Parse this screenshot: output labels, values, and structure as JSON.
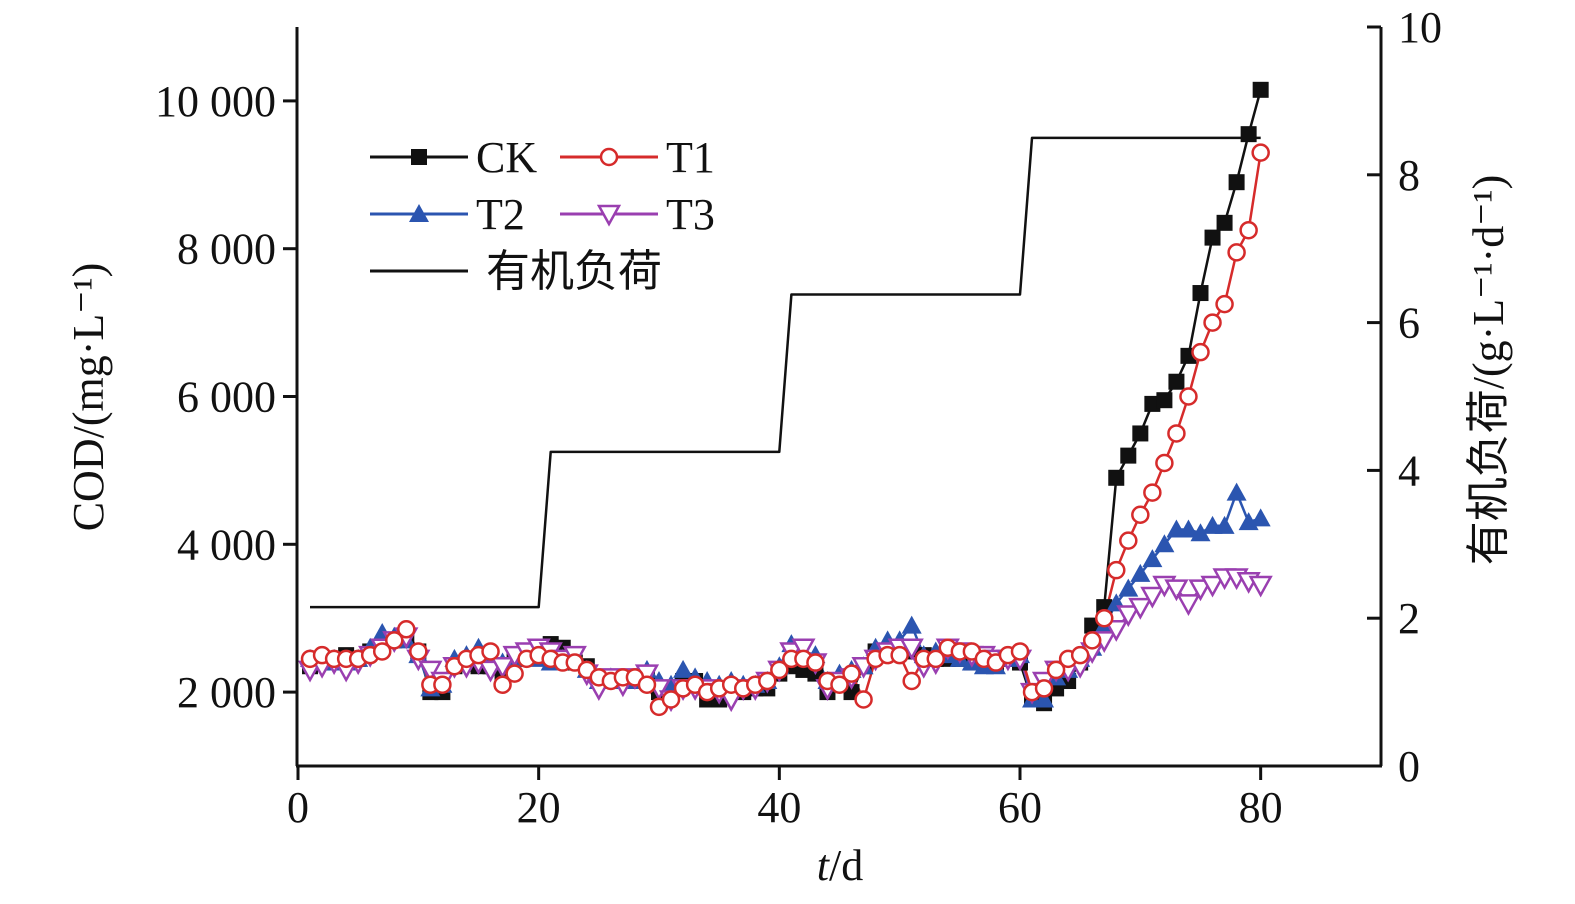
{
  "chart_data": {
    "type": "line",
    "x_axis": {
      "label_italic": "t",
      "label_rest": "/d",
      "range": [
        0,
        90
      ],
      "ticks": [
        0,
        20,
        40,
        60,
        80
      ],
      "tick_labels": [
        "0",
        "20",
        "40",
        "60",
        "80"
      ]
    },
    "y_axis_left": {
      "label": "COD/(mg·L⁻¹)",
      "range": [
        1000,
        11000
      ],
      "ticks": [
        2000,
        4000,
        6000,
        8000,
        10000
      ],
      "tick_labels": [
        "2 000",
        "4 000",
        "6 000",
        "8 000",
        "10 000"
      ]
    },
    "y_axis_right": {
      "label": "有机负荷/(g·L⁻¹·d⁻¹)",
      "range": [
        0,
        10
      ],
      "ticks": [
        0,
        2,
        4,
        6,
        8,
        10
      ],
      "tick_labels": [
        "0",
        "2",
        "4",
        "6",
        "8",
        "10"
      ]
    },
    "legend_position": "top-left",
    "series": [
      {
        "name": "CK",
        "axis": "left",
        "color": "#111111",
        "marker": "square",
        "x": [
          1,
          2,
          3,
          4,
          5,
          6,
          7,
          8,
          9,
          10,
          11,
          12,
          13,
          14,
          15,
          16,
          17,
          18,
          19,
          20,
          21,
          22,
          23,
          24,
          25,
          26,
          27,
          28,
          29,
          30,
          31,
          32,
          33,
          34,
          35,
          36,
          37,
          38,
          39,
          40,
          41,
          42,
          43,
          44,
          45,
          46,
          47,
          48,
          49,
          50,
          51,
          52,
          53,
          54,
          55,
          56,
          57,
          58,
          59,
          60,
          61,
          62,
          63,
          64,
          65,
          66,
          67,
          68,
          69,
          70,
          71,
          72,
          73,
          74,
          75,
          76,
          77,
          78,
          79,
          80
        ],
        "y": [
          2350,
          2400,
          2450,
          2500,
          2450,
          2550,
          2600,
          2700,
          2750,
          2550,
          2000,
          2000,
          2350,
          2400,
          2350,
          2350,
          2250,
          2450,
          2500,
          2550,
          2650,
          2600,
          2400,
          2350,
          2200,
          2200,
          2150,
          2200,
          2200,
          2000,
          2000,
          2150,
          2150,
          1900,
          1900,
          2050,
          2000,
          2050,
          2050,
          2250,
          2350,
          2300,
          2250,
          2000,
          2100,
          2000,
          2350,
          2550,
          2550,
          2600,
          2550,
          2500,
          2450,
          2450,
          2450,
          2400,
          2400,
          2400,
          2450,
          2400,
          1900,
          1850,
          2050,
          2150,
          2400,
          2900,
          3150,
          4900,
          5200,
          5500,
          5900,
          5950,
          6200,
          6550,
          7400,
          8150,
          8350,
          8900,
          9550,
          10150
        ]
      },
      {
        "name": "T1",
        "axis": "left",
        "color": "#d62b2b",
        "marker": "circle",
        "x": [
          1,
          2,
          3,
          4,
          5,
          6,
          7,
          8,
          9,
          10,
          11,
          12,
          13,
          14,
          15,
          16,
          17,
          18,
          19,
          20,
          21,
          22,
          23,
          24,
          25,
          26,
          27,
          28,
          29,
          30,
          31,
          32,
          33,
          34,
          35,
          36,
          37,
          38,
          39,
          40,
          41,
          42,
          43,
          44,
          45,
          46,
          47,
          48,
          49,
          50,
          51,
          52,
          53,
          54,
          55,
          56,
          57,
          58,
          59,
          60,
          61,
          62,
          63,
          64,
          65,
          66,
          67,
          68,
          69,
          70,
          71,
          72,
          73,
          74,
          75,
          76,
          77,
          78,
          79,
          80
        ],
        "y": [
          2450,
          2500,
          2450,
          2450,
          2450,
          2500,
          2550,
          2700,
          2850,
          2550,
          2100,
          2100,
          2350,
          2450,
          2500,
          2550,
          2100,
          2250,
          2450,
          2500,
          2450,
          2400,
          2400,
          2300,
          2200,
          2150,
          2200,
          2200,
          2100,
          1800,
          1900,
          2050,
          2100,
          2000,
          2050,
          2100,
          2050,
          2100,
          2150,
          2300,
          2450,
          2450,
          2400,
          2150,
          2100,
          2250,
          1900,
          2450,
          2500,
          2500,
          2150,
          2450,
          2450,
          2600,
          2550,
          2550,
          2450,
          2400,
          2500,
          2550,
          2000,
          2050,
          2300,
          2450,
          2500,
          2700,
          3000,
          3650,
          4050,
          4400,
          4700,
          5100,
          5500,
          6000,
          6600,
          7000,
          7250,
          7950,
          8250,
          9300
        ]
      },
      {
        "name": "T2",
        "axis": "left",
        "color": "#2b55b0",
        "marker": "triangle-up",
        "x": [
          1,
          2,
          3,
          4,
          5,
          6,
          7,
          8,
          9,
          10,
          11,
          12,
          13,
          14,
          15,
          16,
          17,
          18,
          19,
          20,
          21,
          22,
          23,
          24,
          25,
          26,
          27,
          28,
          29,
          30,
          31,
          32,
          33,
          34,
          35,
          36,
          37,
          38,
          39,
          40,
          41,
          42,
          43,
          44,
          45,
          46,
          47,
          48,
          49,
          50,
          51,
          52,
          53,
          54,
          55,
          56,
          57,
          58,
          59,
          60,
          61,
          62,
          63,
          64,
          65,
          66,
          67,
          68,
          69,
          70,
          71,
          72,
          73,
          74,
          75,
          76,
          77,
          78,
          79,
          80
        ],
        "y": [
          2450,
          2400,
          2450,
          2400,
          2450,
          2600,
          2800,
          2750,
          2700,
          2500,
          2050,
          2100,
          2450,
          2500,
          2600,
          2450,
          2400,
          2450,
          2500,
          2450,
          2400,
          2450,
          2450,
          2300,
          2150,
          2200,
          2150,
          2150,
          2300,
          2150,
          2100,
          2300,
          2200,
          2150,
          2100,
          2150,
          2100,
          2100,
          2150,
          2350,
          2650,
          2550,
          2500,
          2150,
          2250,
          2300,
          2350,
          2600,
          2700,
          2700,
          2900,
          2500,
          2550,
          2500,
          2450,
          2400,
          2350,
          2350,
          2450,
          2500,
          1900,
          1900,
          2200,
          2300,
          2450,
          2600,
          2900,
          3200,
          3400,
          3600,
          3800,
          4000,
          4200,
          4200,
          4150,
          4250,
          4250,
          4700,
          4300,
          4350
        ]
      },
      {
        "name": "T3",
        "axis": "left",
        "color": "#9a3fb0",
        "marker": "triangle-down",
        "x": [
          1,
          2,
          3,
          4,
          5,
          6,
          7,
          8,
          9,
          10,
          11,
          12,
          13,
          14,
          15,
          16,
          17,
          18,
          19,
          20,
          21,
          22,
          23,
          24,
          25,
          26,
          27,
          28,
          29,
          30,
          31,
          32,
          33,
          34,
          35,
          36,
          37,
          38,
          39,
          40,
          41,
          42,
          43,
          44,
          45,
          46,
          47,
          48,
          49,
          50,
          51,
          52,
          53,
          54,
          55,
          56,
          57,
          58,
          59,
          60,
          61,
          62,
          63,
          64,
          65,
          66,
          67,
          68,
          69,
          70,
          71,
          72,
          73,
          74,
          75,
          76,
          77,
          78,
          79,
          80
        ],
        "y": [
          2300,
          2350,
          2400,
          2300,
          2400,
          2500,
          2600,
          2700,
          2750,
          2450,
          2300,
          2150,
          2350,
          2350,
          2400,
          2300,
          2350,
          2500,
          2550,
          2600,
          2550,
          2450,
          2500,
          2250,
          2050,
          2200,
          2100,
          2200,
          2250,
          2050,
          1900,
          2050,
          2050,
          2050,
          2000,
          1900,
          2050,
          2050,
          2150,
          2300,
          2550,
          2600,
          2400,
          2050,
          2150,
          2200,
          2350,
          2450,
          2550,
          2600,
          2600,
          2350,
          2400,
          2600,
          2550,
          2500,
          2500,
          2450,
          2450,
          2450,
          2000,
          2150,
          2300,
          2300,
          2350,
          2550,
          2700,
          2850,
          3050,
          3150,
          3300,
          3450,
          3400,
          3200,
          3400,
          3450,
          3550,
          3550,
          3500,
          3450
        ]
      },
      {
        "name": "有机负荷",
        "axis": "right",
        "color": "#111111",
        "marker": "none",
        "x": [
          1,
          20,
          21,
          40,
          41,
          60,
          61,
          80
        ],
        "y": [
          2.15,
          2.15,
          4.25,
          4.25,
          6.38,
          6.38,
          8.5,
          8.5
        ]
      }
    ]
  }
}
